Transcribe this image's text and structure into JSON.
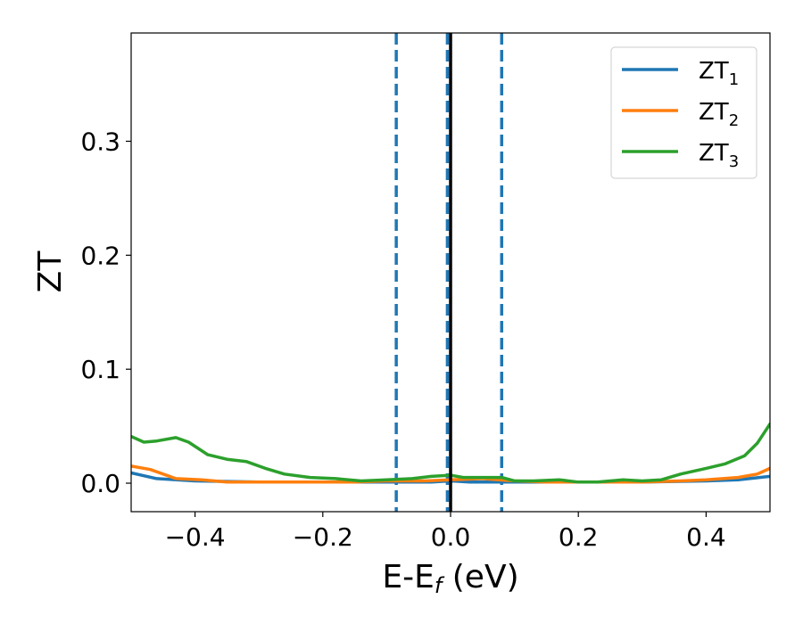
{
  "chart_data": {
    "type": "line",
    "title": "",
    "xlabel": {
      "main": "E-E",
      "sub": "f",
      "suffix": " (eV)"
    },
    "ylabel": "ZT",
    "xlim": [
      -0.5,
      0.5
    ],
    "ylim": [
      -0.025,
      0.395
    ],
    "x_ticks": [
      -0.4,
      -0.2,
      0.0,
      0.2,
      0.4
    ],
    "x_tick_labels": [
      "−0.4",
      "−0.2",
      "0.0",
      "0.2",
      "0.4"
    ],
    "y_ticks": [
      0.0,
      0.1,
      0.2,
      0.3
    ],
    "y_tick_labels": [
      "0.0",
      "0.1",
      "0.2",
      "0.3"
    ],
    "grid": false,
    "legend_position": "top-right",
    "vlines": [
      {
        "x": -0.085,
        "style": "dashed",
        "color": "#1f77b4"
      },
      {
        "x": -0.005,
        "style": "dashed",
        "color": "#1f77b4"
      },
      {
        "x": 0.08,
        "style": "dashed",
        "color": "#1f77b4"
      },
      {
        "x": 0.0,
        "style": "solid",
        "color": "#000000"
      }
    ],
    "series": [
      {
        "name": "ZT",
        "name_sub": "1",
        "color": "#1f77b4",
        "points": [
          [
            -0.5,
            0.009
          ],
          [
            -0.46,
            0.004
          ],
          [
            -0.4,
            0.002
          ],
          [
            -0.3,
            0.001
          ],
          [
            -0.2,
            0.001
          ],
          [
            -0.1,
            0.001
          ],
          [
            -0.03,
            0.001
          ],
          [
            0.0,
            0.002
          ],
          [
            0.03,
            0.001
          ],
          [
            0.1,
            0.001
          ],
          [
            0.2,
            0.001
          ],
          [
            0.3,
            0.001
          ],
          [
            0.4,
            0.002
          ],
          [
            0.45,
            0.003
          ],
          [
            0.5,
            0.006
          ]
        ]
      },
      {
        "name": "ZT",
        "name_sub": "2",
        "color": "#ff7f0e",
        "points": [
          [
            -0.5,
            0.015
          ],
          [
            -0.47,
            0.012
          ],
          [
            -0.43,
            0.004
          ],
          [
            -0.39,
            0.003
          ],
          [
            -0.35,
            0.001
          ],
          [
            -0.25,
            0.001
          ],
          [
            -0.15,
            0.001
          ],
          [
            -0.1,
            0.002
          ],
          [
            -0.04,
            0.002
          ],
          [
            0.0,
            0.003
          ],
          [
            0.05,
            0.004
          ],
          [
            0.1,
            0.002
          ],
          [
            0.15,
            0.001
          ],
          [
            0.2,
            0.001
          ],
          [
            0.3,
            0.001
          ],
          [
            0.36,
            0.002
          ],
          [
            0.4,
            0.003
          ],
          [
            0.45,
            0.005
          ],
          [
            0.48,
            0.008
          ],
          [
            0.5,
            0.013
          ]
        ]
      },
      {
        "name": "ZT",
        "name_sub": "3",
        "color": "#2ca02c",
        "points": [
          [
            -0.5,
            0.041
          ],
          [
            -0.48,
            0.036
          ],
          [
            -0.46,
            0.037
          ],
          [
            -0.43,
            0.04
          ],
          [
            -0.41,
            0.036
          ],
          [
            -0.38,
            0.025
          ],
          [
            -0.35,
            0.021
          ],
          [
            -0.32,
            0.019
          ],
          [
            -0.29,
            0.013
          ],
          [
            -0.26,
            0.008
          ],
          [
            -0.22,
            0.005
          ],
          [
            -0.18,
            0.004
          ],
          [
            -0.14,
            0.002
          ],
          [
            -0.1,
            0.003
          ],
          [
            -0.06,
            0.004
          ],
          [
            -0.03,
            0.006
          ],
          [
            0.0,
            0.007
          ],
          [
            0.02,
            0.005
          ],
          [
            0.05,
            0.005
          ],
          [
            0.08,
            0.005
          ],
          [
            0.1,
            0.002
          ],
          [
            0.13,
            0.002
          ],
          [
            0.17,
            0.003
          ],
          [
            0.2,
            0.001
          ],
          [
            0.23,
            0.001
          ],
          [
            0.27,
            0.003
          ],
          [
            0.3,
            0.002
          ],
          [
            0.33,
            0.003
          ],
          [
            0.36,
            0.008
          ],
          [
            0.4,
            0.013
          ],
          [
            0.43,
            0.017
          ],
          [
            0.46,
            0.024
          ],
          [
            0.48,
            0.035
          ],
          [
            0.5,
            0.052
          ]
        ]
      }
    ]
  }
}
